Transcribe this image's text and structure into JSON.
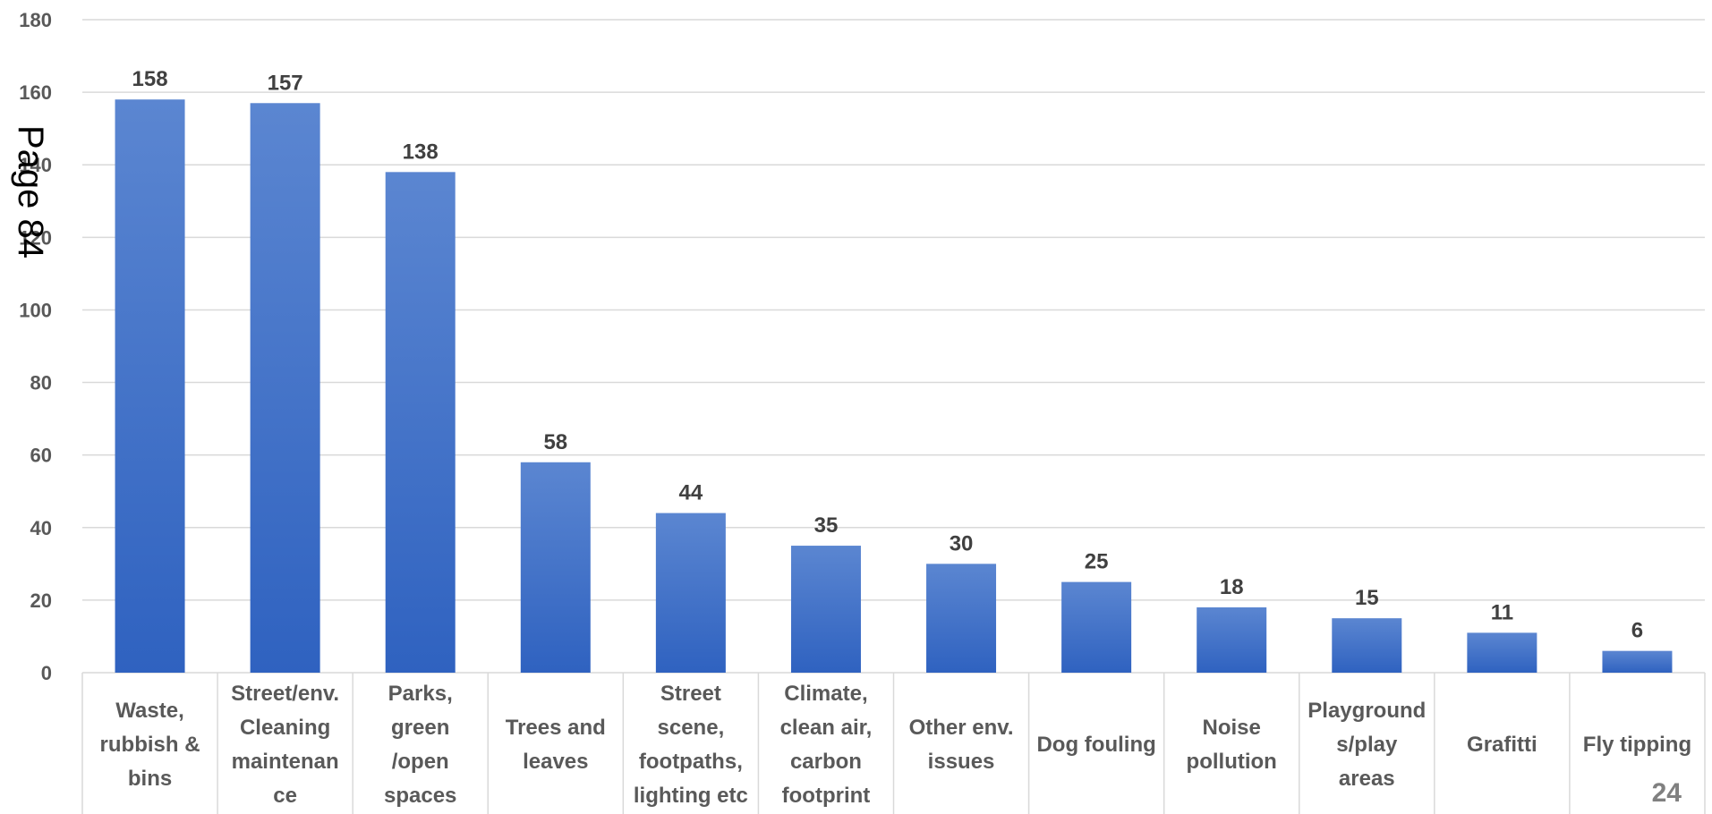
{
  "page_label": "Page 84",
  "page_number": "24",
  "chart_data": {
    "type": "bar",
    "title": "",
    "xlabel": "",
    "ylabel": "",
    "ylim": [
      0,
      180
    ],
    "ytick_step": 20,
    "grid": true,
    "bar_color_top": "#5b86d1",
    "bar_color_bottom": "#2f62c0",
    "categories": [
      [
        "Waste,",
        "rubbish &",
        "bins"
      ],
      [
        "Street/env.",
        "Cleaning",
        "maintenan",
        "ce"
      ],
      [
        "Parks,",
        "green",
        "/open",
        "spaces"
      ],
      [
        "Trees and",
        "leaves"
      ],
      [
        "Street",
        "scene,",
        "footpaths,",
        "lighting etc"
      ],
      [
        "Climate,",
        "clean air,",
        "carbon",
        "footprint"
      ],
      [
        "Other env.",
        "issues"
      ],
      [
        "Dog fouling"
      ],
      [
        "Noise",
        "pollution"
      ],
      [
        "Playground",
        "s/play",
        "areas"
      ],
      [
        "Grafitti"
      ],
      [
        "Fly tipping"
      ]
    ],
    "values": [
      158,
      157,
      138,
      58,
      44,
      35,
      30,
      25,
      18,
      15,
      11,
      6
    ]
  }
}
